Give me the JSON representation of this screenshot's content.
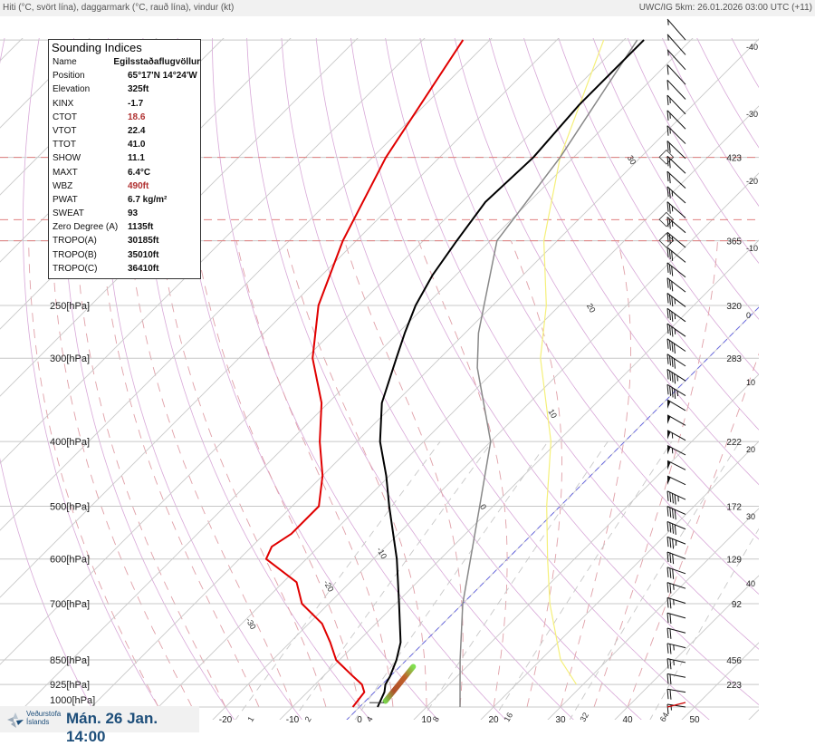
{
  "header": {
    "left_caption": "Hiti (°C, svört lína), daggarmark (°C, rauð lína), vindur (kt)",
    "right_caption": "UWC/IG 5km: 26.01.2026 03:00 UTC (+11)"
  },
  "indices": {
    "title": "Sounding Indices",
    "rows": [
      {
        "label": "Name",
        "value": "Egilsstaðaflugvöllur",
        "highlight": false
      },
      {
        "label": "Position",
        "value": "65°17'N 14°24'W",
        "highlight": false
      },
      {
        "label": "Elevation",
        "value": "325ft",
        "highlight": false
      },
      {
        "label": "KINX",
        "value": "-1.7",
        "highlight": false
      },
      {
        "label": "CTOT",
        "value": "18.6",
        "highlight": true
      },
      {
        "label": "VTOT",
        "value": "22.4",
        "highlight": false
      },
      {
        "label": "TTOT",
        "value": "41.0",
        "highlight": false
      },
      {
        "label": "SHOW",
        "value": "11.1",
        "highlight": false
      },
      {
        "label": "MAXT",
        "value": "6.4°C",
        "highlight": false
      },
      {
        "label": "WBZ",
        "value": "490ft",
        "highlight": true
      },
      {
        "label": "PWAT",
        "value": "6.7 kg/m²",
        "highlight": false
      },
      {
        "label": "SWEAT",
        "value": "93",
        "highlight": false
      },
      {
        "label": "Zero Degree (A)",
        "value": "1135ft",
        "highlight": false
      },
      {
        "label": "TROPO(A)",
        "value": "30185ft",
        "highlight": false
      },
      {
        "label": "TROPO(B)",
        "value": "35010ft",
        "highlight": false
      },
      {
        "label": "TROPO(C)",
        "value": "36410ft",
        "highlight": false
      }
    ]
  },
  "brand": {
    "org_line1": "Veðurstofa",
    "org_line2": "Íslands",
    "datetime": "Mán. 26 Jan. 14:00"
  },
  "colors": {
    "temperature": "#000000",
    "dewpoint": "#e00000",
    "yellow_line": "#f5f07a",
    "parcel": "#888888",
    "freezing": "#6060e0",
    "tropopause": "#e08080",
    "isotherm": "#c8c8c8",
    "dry_adiabat": "#d8a8d8",
    "moist_adiabat": "#e0a0a8",
    "mixing_ratio": "#c8c8c8"
  },
  "chart_data": {
    "type": "skew-t",
    "title": "Hiti (°C, svört lína), daggarmark (°C, rauð lína), vindur (kt)",
    "pressure_range_hpa": [
      1000,
      100
    ],
    "temperature_ticks": [
      "-20",
      "-10",
      "0",
      "10",
      "20",
      "30",
      "40",
      "50"
    ],
    "temperature_tick_values": [
      -20,
      -10,
      0,
      10,
      20,
      30,
      40,
      50
    ],
    "mixing_ratio_labels": [
      "1",
      "2",
      "4",
      "8",
      "16",
      "32",
      "64"
    ],
    "mixing_ratio_values": [
      1,
      2,
      4,
      8,
      16,
      32,
      64
    ],
    "pressure_levels": [
      {
        "p": 1000,
        "label": "1000[hPa]"
      },
      {
        "p": 925,
        "label": "925[hPa]"
      },
      {
        "p": 850,
        "label": "850[hPa]"
      },
      {
        "p": 700,
        "label": "700[hPa]"
      },
      {
        "p": 600,
        "label": "600[hPa]"
      },
      {
        "p": 500,
        "label": "500[hPa]"
      },
      {
        "p": 400,
        "label": "400[hPa]"
      },
      {
        "p": 300,
        "label": "300[hPa]"
      },
      {
        "p": 250,
        "label": "250[hPa]"
      },
      {
        "p": 200,
        "label": ""
      },
      {
        "p": 150,
        "label": ""
      },
      {
        "p": 100,
        "label": ""
      }
    ],
    "height_labels": [
      {
        "p": 925,
        "label": "223"
      },
      {
        "p": 850,
        "label": "456"
      },
      {
        "p": 700,
        "label": "92"
      },
      {
        "p": 600,
        "label": "129"
      },
      {
        "p": 500,
        "label": "172"
      },
      {
        "p": 400,
        "label": "222"
      },
      {
        "p": 300,
        "label": "283"
      },
      {
        "p": 250,
        "label": "320"
      },
      {
        "p": 200,
        "label": "365"
      },
      {
        "p": 150,
        "label": "423"
      }
    ],
    "isotherm_right_labels": [
      "-40",
      "-30",
      "-20",
      "-10",
      "0",
      "10",
      "20",
      "30",
      "40"
    ],
    "isotherm_right_values": [
      -40,
      -30,
      -20,
      -10,
      0,
      10,
      20,
      30,
      40
    ],
    "inline_labels": [
      "30",
      "20",
      "10",
      "0",
      "-10",
      "-20",
      "-30"
    ],
    "inline_label_points": [
      [
        -42,
        150
      ],
      [
        -26,
        250
      ],
      [
        -16,
        360
      ],
      [
        -12,
        500
      ],
      [
        -21,
        580
      ],
      [
        -24,
        650
      ],
      [
        -30,
        740
      ]
    ],
    "tropopause_hpa": [
      200,
      186,
      150
    ],
    "tropopause_note": "tropopause levels drawn as dashed lines",
    "temperature": {
      "p": [
        1000,
        950,
        925,
        900,
        850,
        800,
        700,
        600,
        500,
        450,
        400,
        350,
        300,
        275,
        250,
        225,
        200,
        175,
        150,
        125,
        100
      ],
      "t": [
        2.7,
        1.5,
        0.5,
        0.0,
        -1.5,
        -3.5,
        -9.5,
        -16.5,
        -25.5,
        -30.5,
        -36.5,
        -42,
        -46.5,
        -49,
        -51.5,
        -53.5,
        -55,
        -56.5,
        -56,
        -57,
        -57
      ]
    },
    "dewpoint": {
      "p": [
        1000,
        950,
        925,
        900,
        850,
        800,
        750,
        700,
        650,
        600,
        575,
        550,
        500,
        450,
        400,
        350,
        300,
        250,
        200,
        150,
        100
      ],
      "t": [
        -1,
        -1.5,
        -3,
        -5.5,
        -10.5,
        -14,
        -18,
        -24,
        -28,
        -36,
        -37,
        -36,
        -36,
        -40,
        -45.5,
        -51,
        -59,
        -66,
        -72,
        -78,
        -84
      ]
    },
    "yellow_line": {
      "p": [
        925,
        850,
        700,
        600,
        500,
        400,
        300,
        250,
        200,
        150,
        100
      ],
      "t": [
        29,
        23,
        13,
        6,
        -2,
        -11,
        -25,
        -32,
        -42,
        -52,
        -63
      ]
    },
    "parcel": {
      "p": [
        1000,
        850,
        700,
        500,
        400,
        310,
        275,
        200,
        150,
        100
      ],
      "t": [
        15,
        8,
        0,
        -12,
        -20,
        -33,
        -38,
        -49,
        -52,
        -58
      ]
    },
    "lifted_segment": {
      "p": [
        980,
        870
      ],
      "t": [
        3,
        2
      ]
    },
    "wind_kt": [
      5,
      5,
      5,
      10,
      10,
      15,
      15,
      15,
      20,
      20,
      20,
      25,
      25,
      25,
      25,
      30,
      30,
      30,
      35,
      35,
      35,
      40,
      40,
      45,
      45,
      50,
      50,
      55,
      55,
      50,
      50,
      45,
      40,
      40,
      35,
      30,
      30,
      25,
      25,
      20,
      20,
      25,
      25,
      20,
      20,
      15
    ]
  }
}
